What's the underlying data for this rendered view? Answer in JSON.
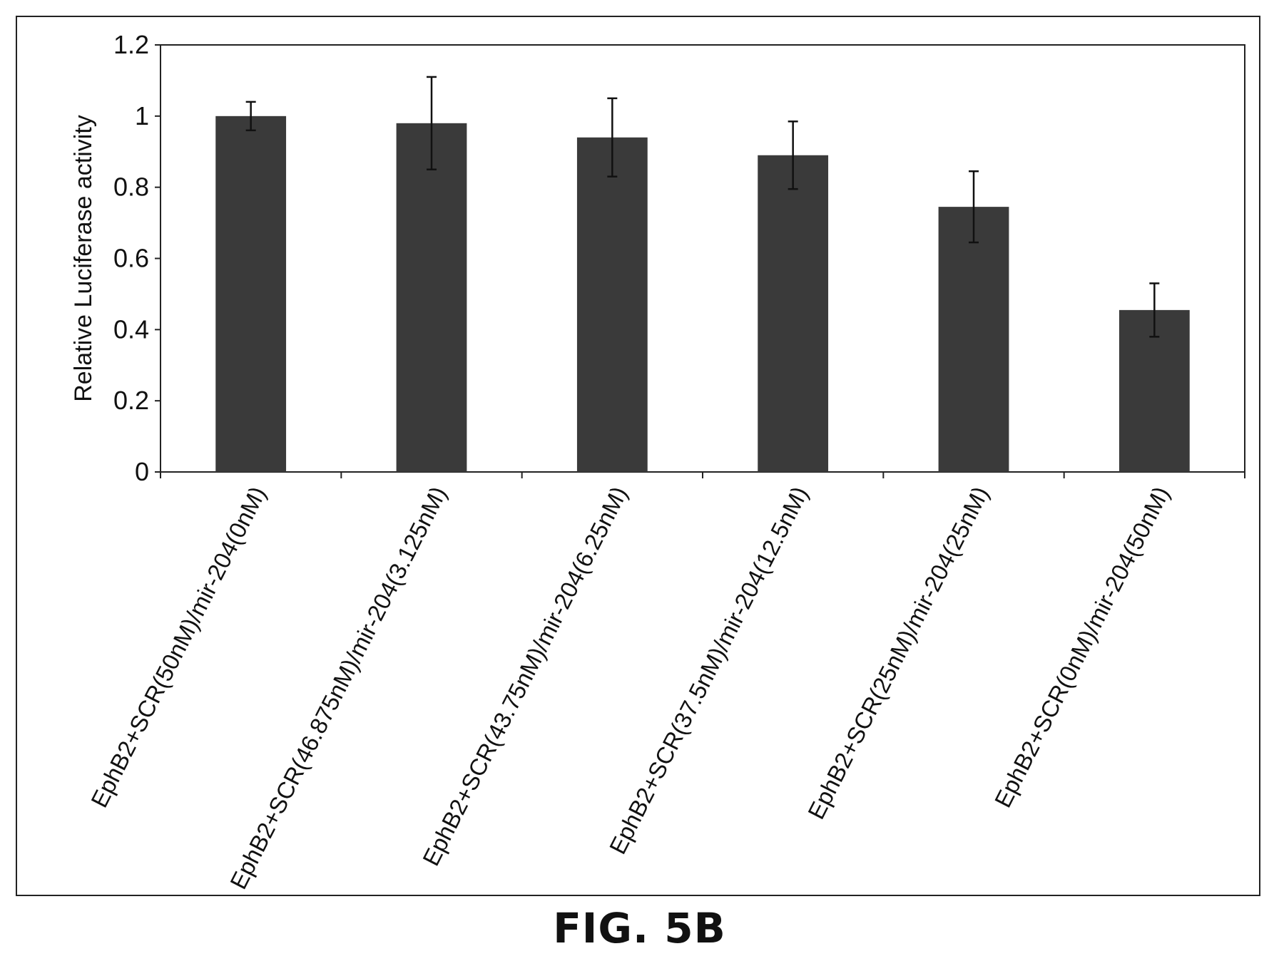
{
  "caption": "FIG. 5B",
  "chart_data": {
    "type": "bar",
    "ylabel": "Relative Luciferase activity",
    "xlabel": "",
    "ylim": [
      0,
      1.2
    ],
    "yticks": [
      "0",
      "0.2",
      "0.4",
      "0.6",
      "0.8",
      "1",
      "1.2"
    ],
    "categories": [
      "EphB2+SCR(50nM)/mir-204(0nM)",
      "EphB2+SCR(46.875nM)/mir-204(3.125nM)",
      "EphB2+SCR(43.75nM)/mir-204(6.25nM)",
      "EphB2+SCR(37.5nM)/mir-204(12.5nM)",
      "EphB2+SCR(25nM)/mir-204(25nM)",
      "EphB2+SCR(0nM)/mir-204(50nM)"
    ],
    "values": [
      1.0,
      0.98,
      0.94,
      0.89,
      0.745,
      0.455
    ],
    "error": [
      0.04,
      0.13,
      0.11,
      0.095,
      0.1,
      0.075
    ],
    "bar_color": "#3a3a3a",
    "grid": false,
    "legend": "none"
  }
}
